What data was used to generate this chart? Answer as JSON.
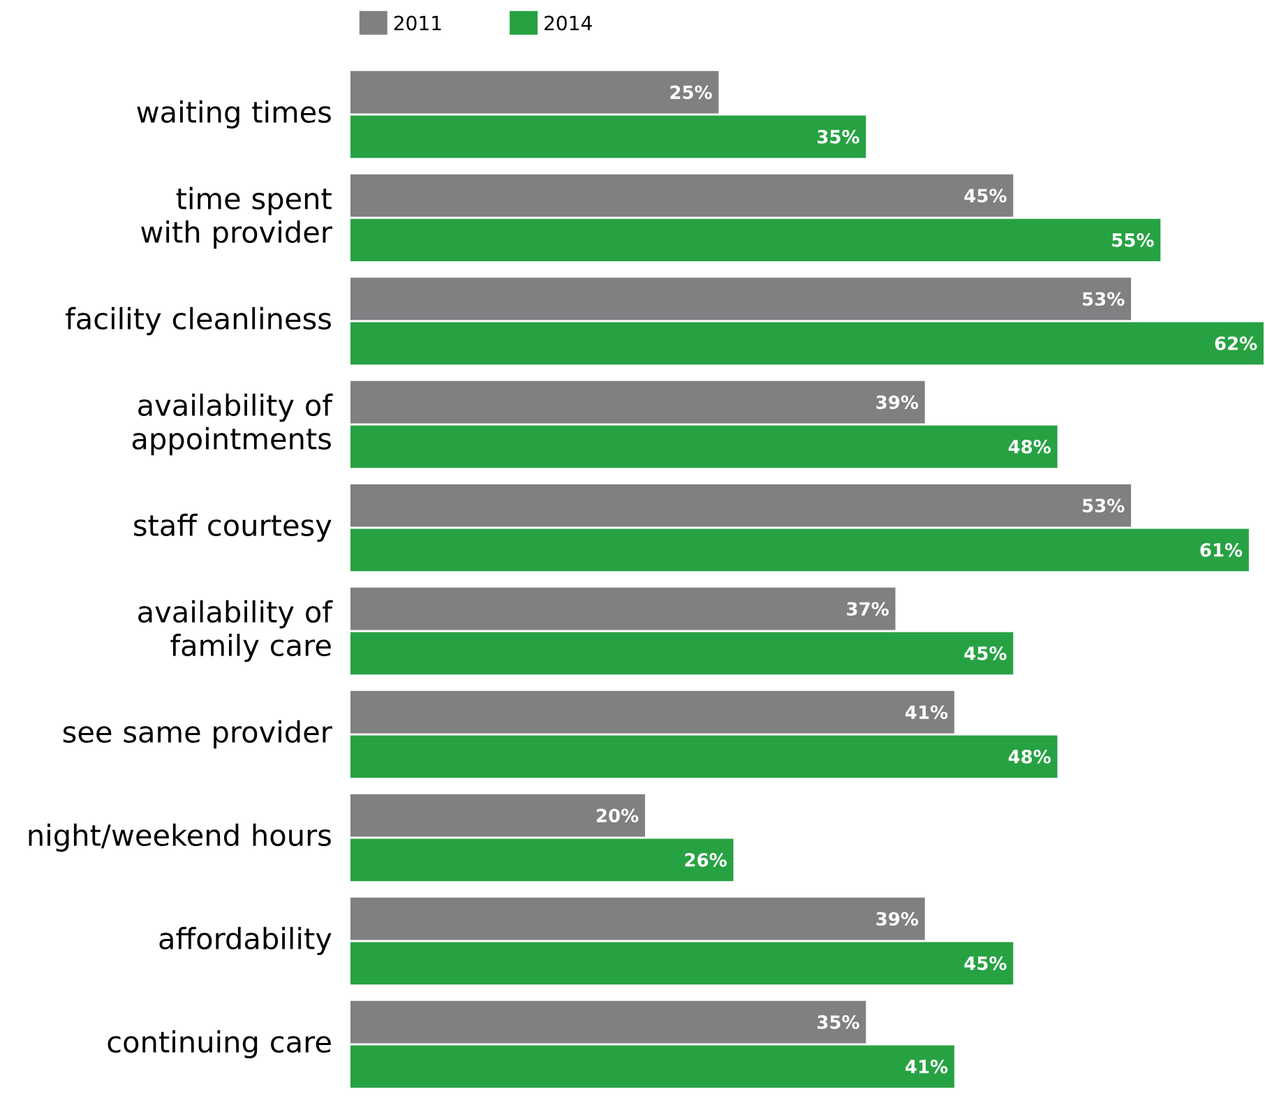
{
  "chart_data": {
    "type": "bar",
    "orientation": "horizontal",
    "categories": [
      "waiting times",
      "time spent with provider",
      "facility cleanliness",
      "availability of appointments",
      "staff courtesy",
      "availability of family care",
      "see same provider",
      "night/weekend hours",
      "affordability",
      "continuing care"
    ],
    "series": [
      {
        "name": "2011",
        "color": "#808083",
        "values": [
          25,
          45,
          53,
          39,
          53,
          37,
          41,
          20,
          39,
          35
        ],
        "value_labels": [
          "25%",
          "45%",
          "53%",
          "39%",
          "53%",
          "37%",
          "41%",
          "20%",
          "39%",
          "35%"
        ]
      },
      {
        "name": "2014",
        "color": "#27a243",
        "values": [
          35,
          55,
          62,
          48,
          61,
          45,
          48,
          26,
          45,
          41
        ],
        "value_labels": [
          "35%",
          "55%",
          "62%",
          "48%",
          "61%",
          "45%",
          "48%",
          "26%",
          "45%",
          "41%"
        ]
      }
    ],
    "legend": "top left"
  }
}
